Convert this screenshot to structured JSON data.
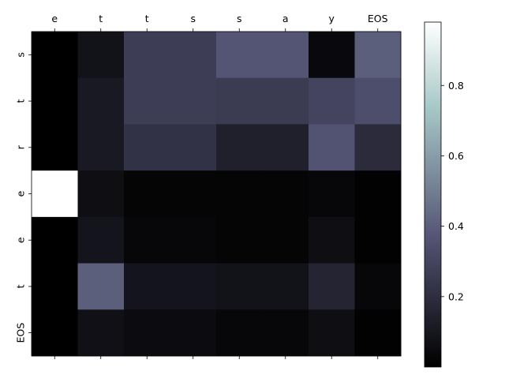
{
  "chart_data": {
    "type": "heatmap",
    "x_categories": [
      "e",
      "t",
      "t",
      "s",
      "s",
      "a",
      "y",
      "EOS"
    ],
    "y_categories": [
      "s",
      "t",
      "r",
      "e",
      "e",
      "t",
      "EOS"
    ],
    "values": [
      [
        0.0,
        0.08,
        0.27,
        0.27,
        0.37,
        0.37,
        0.04,
        0.4
      ],
      [
        0.0,
        0.11,
        0.27,
        0.27,
        0.26,
        0.26,
        0.3,
        0.34
      ],
      [
        0.0,
        0.11,
        0.22,
        0.22,
        0.14,
        0.14,
        0.36,
        0.19
      ],
      [
        0.98,
        0.06,
        0.02,
        0.02,
        0.02,
        0.02,
        0.03,
        0.01
      ],
      [
        0.0,
        0.09,
        0.03,
        0.03,
        0.02,
        0.02,
        0.06,
        0.01
      ],
      [
        0.0,
        0.4,
        0.09,
        0.09,
        0.08,
        0.08,
        0.16,
        0.03
      ],
      [
        0.0,
        0.07,
        0.05,
        0.05,
        0.03,
        0.03,
        0.06,
        0.01
      ]
    ],
    "colormap": "bone",
    "colorbar": {
      "range": [
        0.0,
        0.98
      ],
      "ticks": [
        0.2,
        0.4,
        0.6,
        0.8
      ],
      "tick_labels": [
        "0.2",
        "0.4",
        "0.6",
        "0.8"
      ]
    },
    "x_tick_position": "top",
    "y_tick_rotation": "vertical",
    "grid": false
  }
}
